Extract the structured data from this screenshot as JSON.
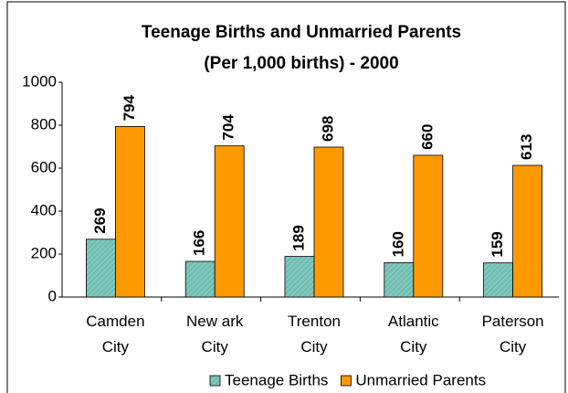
{
  "chart_data": {
    "type": "bar",
    "title": "Teenage Births  and Unmarried Parents",
    "subtitle": "(Per 1,000 births) - 2000",
    "categories": [
      "Camden City",
      "New ark City",
      "Trenton City",
      "Atlantic City",
      "Paterson City"
    ],
    "series": [
      {
        "name": "Teenage Births",
        "color": "#80c8bd",
        "values": [
          269,
          166,
          189,
          160,
          159
        ]
      },
      {
        "name": "Unmarried Parents",
        "color": "#ff9900",
        "values": [
          794,
          704,
          698,
          660,
          613
        ]
      }
    ],
    "ylim": [
      0,
      1000
    ],
    "yticks": [
      0,
      200,
      400,
      600,
      800,
      1000
    ],
    "grid": false,
    "legend": "bottom"
  }
}
